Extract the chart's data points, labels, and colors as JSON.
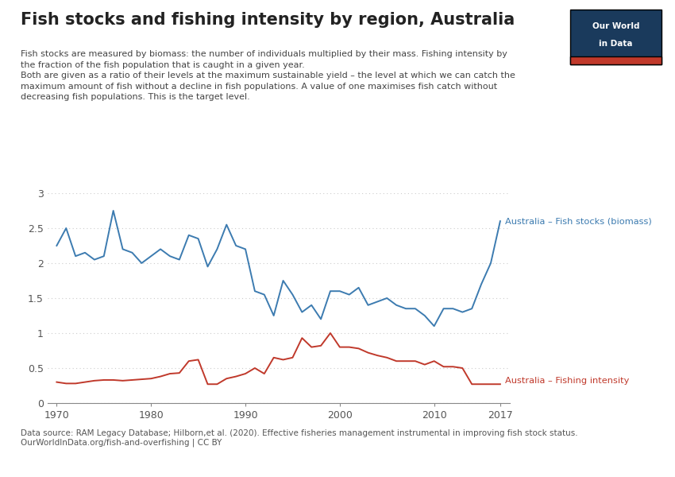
{
  "title": "Fish stocks and fishing intensity by region, Australia",
  "subtitle_line1": "Fish stocks are measured by biomass: the number of individuals multiplied by their mass. Fishing intensity by",
  "subtitle_line2": "the fraction of the fish population that is caught in a given year.",
  "subtitle_line3": "Both are given as a ratio of their levels at the maximum sustainable yield – the level at which we can catch the",
  "subtitle_line4": "maximum amount of fish without a decline in fish populations. A value of one maximises fish catch without",
  "subtitle_line5": "decreasing fish populations. This is the target level.",
  "source_line1": "Data source: RAM Legacy Database; Hilborn,et al. (2020). Effective fisheries management instrumental in improving fish stock status.",
  "source_line2": "OurWorldInData.org/fish-and-overfishing | CC BY",
  "biomass_label": "Australia – Fish stocks (biomass)",
  "intensity_label": "Australia – Fishing intensity",
  "biomass_color": "#3C7BB0",
  "intensity_color": "#C0392B",
  "background_color": "#FFFFFF",
  "ylim": [
    0,
    3.0
  ],
  "yticks": [
    0,
    0.5,
    1.0,
    1.5,
    2.0,
    2.5,
    3.0
  ],
  "xlim": [
    1969,
    2018
  ],
  "xticks": [
    1970,
    1980,
    1990,
    2000,
    2010,
    2017
  ],
  "biomass_years": [
    1970,
    1971,
    1972,
    1973,
    1974,
    1975,
    1976,
    1977,
    1978,
    1979,
    1980,
    1981,
    1982,
    1983,
    1984,
    1985,
    1986,
    1987,
    1988,
    1989,
    1990,
    1991,
    1992,
    1993,
    1994,
    1995,
    1996,
    1997,
    1998,
    1999,
    2000,
    2001,
    2002,
    2003,
    2004,
    2005,
    2006,
    2007,
    2008,
    2009,
    2010,
    2011,
    2012,
    2013,
    2014,
    2015,
    2016,
    2017
  ],
  "biomass_values": [
    2.25,
    2.5,
    2.1,
    2.15,
    2.05,
    2.1,
    2.75,
    2.2,
    2.15,
    2.0,
    2.1,
    2.2,
    2.1,
    2.05,
    2.4,
    2.35,
    1.95,
    2.2,
    2.55,
    2.25,
    2.2,
    1.6,
    1.55,
    1.25,
    1.75,
    1.55,
    1.3,
    1.4,
    1.2,
    1.6,
    1.6,
    1.55,
    1.65,
    1.4,
    1.45,
    1.5,
    1.4,
    1.35,
    1.35,
    1.25,
    1.1,
    1.35,
    1.35,
    1.3,
    1.35,
    1.7,
    2.0,
    2.6
  ],
  "intensity_years": [
    1970,
    1971,
    1972,
    1973,
    1974,
    1975,
    1976,
    1977,
    1978,
    1979,
    1980,
    1981,
    1982,
    1983,
    1984,
    1985,
    1986,
    1987,
    1988,
    1989,
    1990,
    1991,
    1992,
    1993,
    1994,
    1995,
    1996,
    1997,
    1998,
    1999,
    2000,
    2001,
    2002,
    2003,
    2004,
    2005,
    2006,
    2007,
    2008,
    2009,
    2010,
    2011,
    2012,
    2013,
    2014,
    2015,
    2016,
    2017
  ],
  "intensity_values": [
    0.3,
    0.28,
    0.28,
    0.3,
    0.32,
    0.33,
    0.33,
    0.32,
    0.33,
    0.34,
    0.35,
    0.38,
    0.42,
    0.43,
    0.6,
    0.62,
    0.27,
    0.27,
    0.35,
    0.38,
    0.42,
    0.5,
    0.42,
    0.65,
    0.62,
    0.65,
    0.93,
    0.8,
    0.82,
    1.0,
    0.8,
    0.8,
    0.78,
    0.72,
    0.68,
    0.65,
    0.6,
    0.6,
    0.6,
    0.55,
    0.6,
    0.52,
    0.52,
    0.5,
    0.27,
    0.27,
    0.27,
    0.27
  ],
  "owid_box_color": "#1A3A5C",
  "owid_red_color": "#C0392B",
  "grid_color": "#CCCCCC"
}
